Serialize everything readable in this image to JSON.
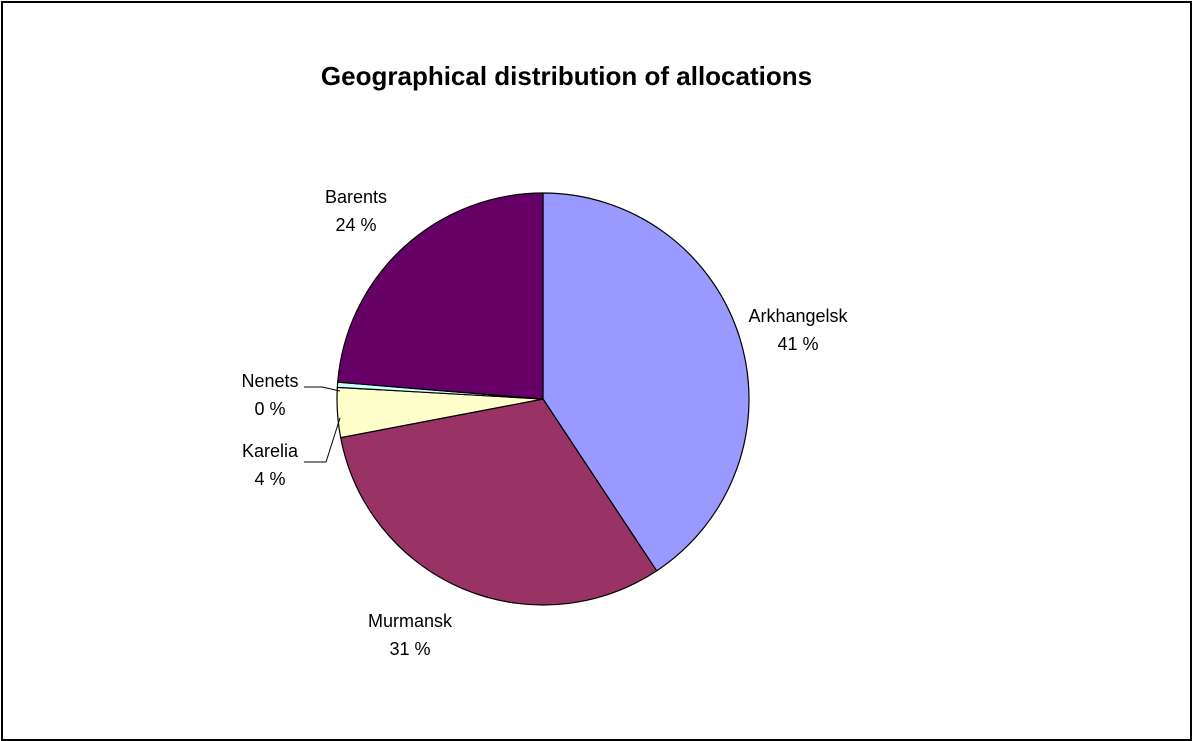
{
  "chart_data": {
    "type": "pie",
    "title": "Geographical distribution of allocations",
    "slices": [
      {
        "label": "Arkhangelsk",
        "value_label": "41 %",
        "value": 40.7,
        "color": "#9999ff"
      },
      {
        "label": "Murmansk",
        "value_label": "31 %",
        "value": 31.3,
        "color": "#993366"
      },
      {
        "label": "Karelia",
        "value_label": "4 %",
        "value": 3.9,
        "color": "#ffffcc"
      },
      {
        "label": "Nenets",
        "value_label": "0 %",
        "value": 0.4,
        "color": "#ccffff"
      },
      {
        "label": "Barents",
        "value_label": "24 %",
        "value": 23.7,
        "color": "#660066"
      }
    ],
    "start_angle": "12 o'clock",
    "direction": "clockwise",
    "legend": "none",
    "data_labels": "outside"
  }
}
